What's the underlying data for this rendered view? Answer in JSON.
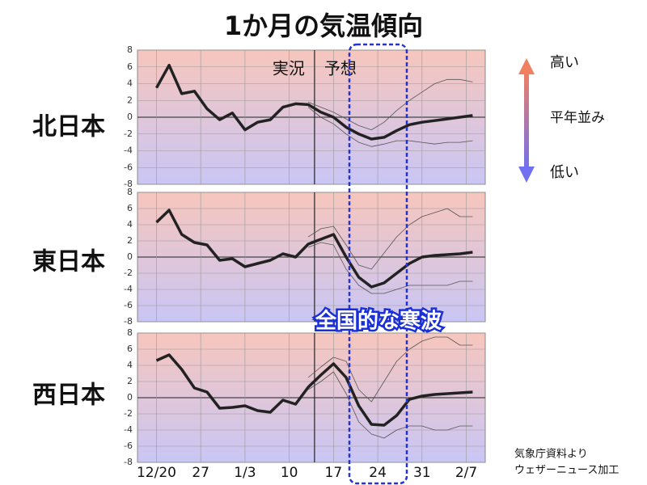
{
  "title": "1か月の気温傾向",
  "scale_labels": {
    "high": "高い",
    "normal": "平年並み",
    "low": "低い"
  },
  "highlight_label": "全国的な寒波",
  "source": [
    "気象庁資料より",
    "ウェザーニュース加工"
  ],
  "chart_data": [
    {
      "type": "line",
      "title": "北日本",
      "annotations": [
        "実況",
        "予想"
      ],
      "forecast_start": 25,
      "x": [
        0,
        2,
        4,
        6,
        8,
        10,
        12,
        14,
        16,
        18,
        20,
        22,
        24,
        26,
        28,
        30,
        32,
        34,
        36,
        38,
        40,
        42,
        44,
        46,
        48,
        50
      ],
      "xlim": [
        -3,
        52
      ],
      "ylim": [
        -8,
        8
      ],
      "yticks": [
        -8,
        -6,
        -4,
        -2,
        0,
        2,
        4,
        6,
        8
      ],
      "grid": true,
      "series": [
        {
          "color": "#222222",
          "width": 3.5,
          "values": [
            3.5,
            6.2,
            2.8,
            3.1,
            1.0,
            -0.3,
            0.5,
            -1.5,
            -0.6,
            -0.3,
            1.2,
            1.6,
            1.5,
            0.6,
            0.0,
            -1.2,
            -2.0,
            -2.6,
            -2.4,
            -1.6,
            -0.9,
            -0.6,
            -0.4,
            -0.2,
            0.0,
            0.2
          ]
        },
        {
          "color": "#555555",
          "width": 0.8,
          "values": [
            null,
            null,
            null,
            null,
            null,
            null,
            null,
            null,
            null,
            null,
            null,
            null,
            1.8,
            1.2,
            0.6,
            -0.2,
            -1.0,
            -1.5,
            -0.6,
            0.8,
            2.0,
            3.0,
            4.0,
            4.5,
            4.5,
            4.2
          ]
        },
        {
          "color": "#555555",
          "width": 0.8,
          "values": [
            null,
            null,
            null,
            null,
            null,
            null,
            null,
            null,
            null,
            null,
            null,
            null,
            1.2,
            0.0,
            -0.8,
            -2.0,
            -3.0,
            -3.5,
            -3.2,
            -2.8,
            -2.8,
            -3.0,
            -3.2,
            -3.0,
            -3.0,
            -2.8
          ]
        }
      ]
    },
    {
      "type": "line",
      "title": "東日本",
      "forecast_start": 25,
      "x": [
        0,
        2,
        4,
        6,
        8,
        10,
        12,
        14,
        16,
        18,
        20,
        22,
        24,
        26,
        28,
        30,
        32,
        34,
        36,
        38,
        40,
        42,
        44,
        46,
        48,
        50
      ],
      "xlim": [
        -3,
        52
      ],
      "ylim": [
        -8,
        8
      ],
      "yticks": [
        -8,
        -6,
        -4,
        -2,
        0,
        2,
        4,
        6,
        8
      ],
      "grid": true,
      "series": [
        {
          "color": "#222222",
          "width": 3.5,
          "values": [
            4.3,
            5.8,
            2.8,
            1.8,
            1.5,
            -0.4,
            -0.2,
            -1.2,
            -0.8,
            -0.4,
            0.4,
            0.0,
            1.6,
            2.2,
            2.8,
            0.0,
            -2.5,
            -3.7,
            -3.2,
            -2.0,
            -0.8,
            0.0,
            0.2,
            0.3,
            0.4,
            0.6
          ]
        },
        {
          "color": "#555555",
          "width": 0.8,
          "values": [
            null,
            null,
            null,
            null,
            null,
            null,
            null,
            null,
            null,
            null,
            null,
            null,
            2.5,
            3.5,
            3.8,
            1.5,
            -1.0,
            -1.5,
            0.5,
            2.5,
            4.0,
            5.0,
            5.5,
            6.0,
            5.0,
            5.0
          ]
        },
        {
          "color": "#555555",
          "width": 0.8,
          "values": [
            null,
            null,
            null,
            null,
            null,
            null,
            null,
            null,
            null,
            null,
            null,
            null,
            1.2,
            1.8,
            1.5,
            -1.5,
            -3.5,
            -4.5,
            -4.5,
            -4.0,
            -3.5,
            -3.5,
            -3.5,
            -3.5,
            -3.0,
            -3.0
          ]
        }
      ]
    },
    {
      "type": "line",
      "title": "西日本",
      "forecast_start": 25,
      "x": [
        0,
        2,
        4,
        6,
        8,
        10,
        12,
        14,
        16,
        18,
        20,
        22,
        24,
        26,
        28,
        30,
        32,
        34,
        36,
        38,
        40,
        42,
        44,
        46,
        48,
        50
      ],
      "xlim": [
        -3,
        52
      ],
      "ylim": [
        -8,
        8
      ],
      "yticks": [
        -8,
        -6,
        -4,
        -2,
        0,
        2,
        4,
        6,
        8
      ],
      "grid": true,
      "xticks": [
        {
          "value": 0,
          "label": "12/20"
        },
        {
          "value": 7,
          "label": "27"
        },
        {
          "value": 14,
          "label": "1/3"
        },
        {
          "value": 21,
          "label": "10"
        },
        {
          "value": 28,
          "label": "17"
        },
        {
          "value": 35,
          "label": "24"
        },
        {
          "value": 42,
          "label": "31"
        },
        {
          "value": 49,
          "label": "2/7"
        }
      ],
      "series": [
        {
          "color": "#222222",
          "width": 3.5,
          "values": [
            4.6,
            5.3,
            3.5,
            1.2,
            0.7,
            -1.3,
            -1.2,
            -1.0,
            -1.6,
            -1.8,
            -0.3,
            -0.8,
            1.3,
            2.8,
            4.2,
            2.5,
            -1.0,
            -3.3,
            -3.4,
            -2.2,
            -0.2,
            0.2,
            0.4,
            0.5,
            0.6,
            0.7
          ]
        },
        {
          "color": "#555555",
          "width": 0.8,
          "values": [
            null,
            null,
            null,
            null,
            null,
            null,
            null,
            null,
            null,
            null,
            null,
            null,
            2.5,
            3.8,
            5.0,
            4.5,
            1.0,
            -0.5,
            2.0,
            4.5,
            6.0,
            7.0,
            7.5,
            7.5,
            6.5,
            6.5
          ]
        },
        {
          "color": "#555555",
          "width": 0.8,
          "values": [
            null,
            null,
            null,
            null,
            null,
            null,
            null,
            null,
            null,
            null,
            null,
            null,
            1.0,
            2.0,
            3.2,
            0.5,
            -3.0,
            -4.5,
            -5.0,
            -4.0,
            -3.5,
            -3.5,
            -4.0,
            -4.0,
            -3.5,
            -3.5
          ]
        }
      ]
    }
  ]
}
